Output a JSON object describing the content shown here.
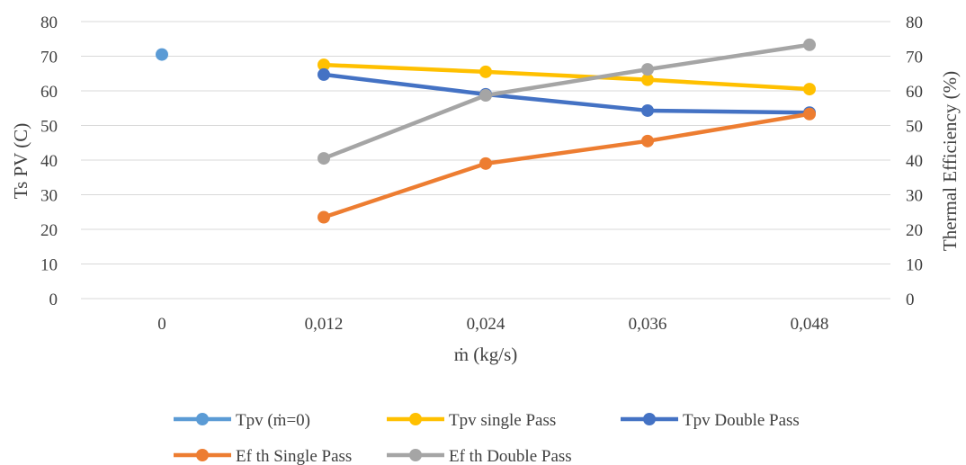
{
  "chart_data": {
    "type": "line",
    "categories": [
      "0",
      "0,012",
      "0,024",
      "0,036",
      "0,048"
    ],
    "xlabel": "ṁ (kg/s)",
    "ylabel": "Ts PV (C)",
    "y2label": "Thermal Efficiency   (%)",
    "ylim": [
      0,
      80
    ],
    "y2lim": [
      0,
      80
    ],
    "yticks": [
      "0",
      "10",
      "20",
      "30",
      "40",
      "50",
      "60",
      "70",
      "80"
    ],
    "y2ticks": [
      "0",
      "10",
      "20",
      "30",
      "40",
      "50",
      "60",
      "70",
      "80"
    ],
    "grid": true,
    "legend_position": "bottom",
    "series": [
      {
        "name": "Tpv (ṁ=0)",
        "color": "#5B9BD5",
        "axis": "left",
        "values": [
          70.5,
          null,
          null,
          null,
          null
        ]
      },
      {
        "name": "Tpv single Pass",
        "color": "#FFC000",
        "axis": "left",
        "values": [
          null,
          67.5,
          65.5,
          63.2,
          60.5
        ]
      },
      {
        "name": "Tpv Double Pass",
        "color": "#4472C4",
        "axis": "left",
        "values": [
          null,
          64.7,
          59.0,
          54.3,
          53.7
        ]
      },
      {
        "name": "Ef th Single Pass",
        "color": "#ED7D31",
        "axis": "right",
        "values": [
          null,
          23.5,
          39.0,
          45.5,
          53.3
        ]
      },
      {
        "name": "Ef th Double Pass",
        "color": "#A5A5A5",
        "axis": "right",
        "values": [
          null,
          40.5,
          58.7,
          66.2,
          73.3
        ]
      }
    ]
  }
}
